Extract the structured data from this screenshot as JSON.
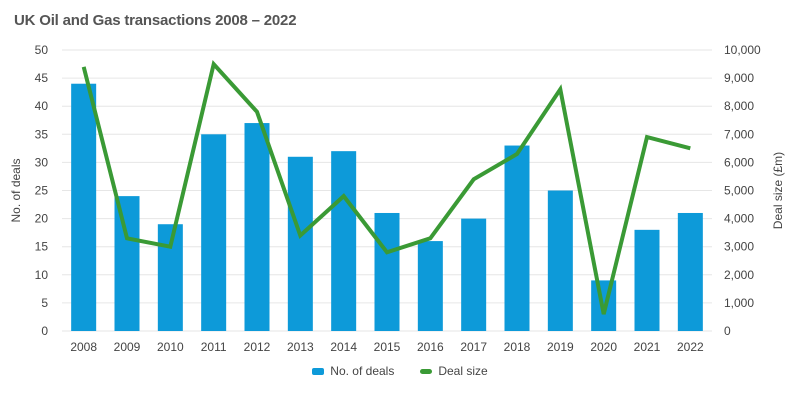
{
  "chart_data": {
    "type": "bar",
    "title": "UK Oil and Gas transactions 2008 – 2022",
    "categories": [
      "2008",
      "2009",
      "2010",
      "2011",
      "2012",
      "2013",
      "2014",
      "2015",
      "2016",
      "2017",
      "2018",
      "2019",
      "2020",
      "2021",
      "2022"
    ],
    "series": [
      {
        "name": "No. of deals",
        "type": "bar",
        "axis": "left",
        "values": [
          44,
          24,
          19,
          35,
          37,
          31,
          32,
          21,
          16,
          20,
          33,
          25,
          9,
          18,
          21
        ]
      },
      {
        "name": "Deal size",
        "type": "line",
        "axis": "right",
        "values": [
          9400,
          3300,
          3000,
          9500,
          7800,
          3400,
          4800,
          2800,
          3300,
          5400,
          6300,
          8600,
          600,
          6900,
          6500
        ]
      }
    ],
    "ylabel_left": "No. of deals",
    "ylabel_right": "Deal size (£m)",
    "ylim_left": [
      0,
      50
    ],
    "ylim_right": [
      0,
      10000
    ],
    "yticks_left": [
      "0",
      "5",
      "10",
      "15",
      "20",
      "25",
      "30",
      "35",
      "40",
      "45",
      "50"
    ],
    "yticks_right": [
      "0",
      "1,000",
      "2,000",
      "3,000",
      "4,000",
      "5,000",
      "6,000",
      "7,000",
      "8,000",
      "9,000",
      "10,000"
    ],
    "grid": "horizontal",
    "legend_position": "bottom",
    "colors": {
      "bar": "#0d9ad9",
      "line": "#3a9a35",
      "grid": "#e6e6e6"
    }
  }
}
